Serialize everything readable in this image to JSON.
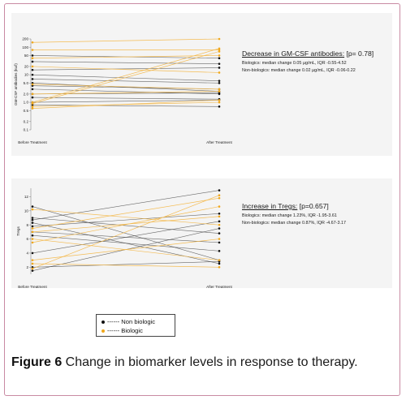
{
  "caption": {
    "label": "Figure 6",
    "text": " Change in biomarker levels in response to therapy."
  },
  "legend": [
    {
      "text": "------ Non biologic",
      "color": "#111111"
    },
    {
      "text": "------ Biologic",
      "color": "#f0a81c"
    }
  ],
  "colors": {
    "non_biologic": "#3a3a3a",
    "biologic": "#f3b84a",
    "frame": "#c98aa3"
  },
  "chart_data": [
    {
      "type": "line",
      "title": "",
      "ylabel": "GM-CSF antibodies (ku/l)",
      "xlabel": "",
      "x": [
        "Before Treatment",
        "After Treatment"
      ],
      "yscale": "log",
      "yticks": [
        "0.1",
        "0.2",
        "0.5",
        "1.0",
        "2.0",
        "5.0",
        "10",
        "20",
        "50",
        "100",
        "200"
      ],
      "ytick_values": [
        0.1,
        0.2,
        0.5,
        1.0,
        2.0,
        5.0,
        10,
        20,
        50,
        100,
        200
      ],
      "ylim": [
        0.1,
        200
      ],
      "annotation": {
        "heading_underlined": "Decrease in GM-CSF antibodies:",
        "heading_rest": " [p= 0.78]",
        "lines": [
          "Biologics:  median change 0.05 µg/mL, IQR -0.55-4.52",
          "Non-biologics:  median change 0.02 µg/mL, IQR -0.06-0.22"
        ]
      },
      "series": [
        {
          "group": "non_biologic",
          "values": [
            50,
            40
          ]
        },
        {
          "group": "non_biologic",
          "values": [
            30,
            25
          ]
        },
        {
          "group": "non_biologic",
          "values": [
            15,
            18
          ]
        },
        {
          "group": "non_biologic",
          "values": [
            10,
            6
          ]
        },
        {
          "group": "non_biologic",
          "values": [
            7,
            5
          ]
        },
        {
          "group": "non_biologic",
          "values": [
            5,
            2.5
          ]
        },
        {
          "group": "non_biologic",
          "values": [
            4,
            3
          ]
        },
        {
          "group": "non_biologic",
          "values": [
            3,
            2
          ]
        },
        {
          "group": "non_biologic",
          "values": [
            2,
            2.2
          ]
        },
        {
          "group": "non_biologic",
          "values": [
            1.5,
            1.3
          ]
        },
        {
          "group": "non_biologic",
          "values": [
            1,
            1.2
          ]
        },
        {
          "group": "non_biologic",
          "values": [
            0.8,
            0.7
          ]
        },
        {
          "group": "biologic",
          "values": [
            150,
            200
          ]
        },
        {
          "group": "biologic",
          "values": [
            80,
            80
          ]
        },
        {
          "group": "biologic",
          "values": [
            40,
            50
          ]
        },
        {
          "group": "biologic",
          "values": [
            20,
            12
          ]
        },
        {
          "group": "biologic",
          "values": [
            4.5,
            3
          ]
        },
        {
          "group": "biologic",
          "values": [
            2,
            2.5
          ]
        },
        {
          "group": "biologic",
          "values": [
            1,
            90
          ]
        },
        {
          "group": "biologic",
          "values": [
            0.9,
            70
          ]
        },
        {
          "group": "biologic",
          "values": [
            0.7,
            1
          ]
        },
        {
          "group": "biologic",
          "values": [
            0.6,
            1.2
          ]
        }
      ]
    },
    {
      "type": "line",
      "title": "",
      "ylabel": "Tregs",
      "xlabel": "",
      "x": [
        "Before Treatment",
        "After Treatment"
      ],
      "yticks": [
        "2",
        "4",
        "6",
        "8",
        "10",
        "12"
      ],
      "ytick_values": [
        2,
        4,
        6,
        8,
        10,
        12
      ],
      "ylim": [
        1,
        13.2
      ],
      "annotation": {
        "heading_underlined": "Increase in Tregs:",
        "heading_rest": " [p=0.657]",
        "lines": [
          "Biologics:  median change 1.23%,  IQR -1.95-3.61",
          "Non-biologics:  median change 0.87%, IQR -4.67-3.17"
        ]
      },
      "series": [
        {
          "group": "non_biologic",
          "values": [
            10.6,
            3
          ]
        },
        {
          "group": "non_biologic",
          "values": [
            9,
            6.8
          ]
        },
        {
          "group": "non_biologic",
          "values": [
            8.7,
            12.9
          ]
        },
        {
          "group": "non_biologic",
          "values": [
            8.3,
            2.5
          ]
        },
        {
          "group": "non_biologic",
          "values": [
            7.8,
            9.6
          ]
        },
        {
          "group": "non_biologic",
          "values": [
            7,
            5.5
          ]
        },
        {
          "group": "non_biologic",
          "values": [
            6.5,
            4.3
          ]
        },
        {
          "group": "non_biologic",
          "values": [
            4,
            8.5
          ]
        },
        {
          "group": "non_biologic",
          "values": [
            2,
            2.8
          ]
        },
        {
          "group": "non_biologic",
          "values": [
            1.5,
            7.5
          ]
        },
        {
          "group": "biologic",
          "values": [
            10.2,
            8
          ]
        },
        {
          "group": "biologic",
          "values": [
            7.5,
            11.8
          ]
        },
        {
          "group": "biologic",
          "values": [
            7,
            9.2
          ]
        },
        {
          "group": "biologic",
          "values": [
            6,
            3
          ]
        },
        {
          "group": "biologic",
          "values": [
            5.5,
            10.6
          ]
        },
        {
          "group": "biologic",
          "values": [
            3,
            6
          ]
        },
        {
          "group": "biologic",
          "values": [
            2.5,
            2
          ]
        },
        {
          "group": "biologic",
          "values": [
            1.8,
            12.2
          ]
        }
      ]
    }
  ]
}
